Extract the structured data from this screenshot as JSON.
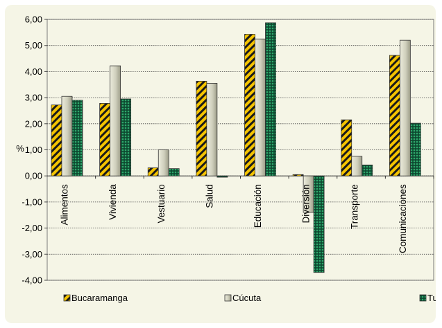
{
  "chart_data": {
    "type": "bar",
    "title": "",
    "xlabel": "",
    "ylabel": "%",
    "ylim": [
      -4,
      6
    ],
    "ytick_step": 1,
    "yticks": [
      "6,00",
      "5,00",
      "4,00",
      "3,00",
      "2,00",
      "1,00",
      "0,00",
      "-1,00",
      "-2,00",
      "-3,00",
      "-4,00"
    ],
    "grid": true,
    "legend_position": "bottom",
    "categories": [
      "Alimentos",
      "Vivienda",
      "Vestuario",
      "Salud",
      "Educación",
      "Diversión",
      "Transporte",
      "Comunicaciones"
    ],
    "series": [
      {
        "name": "Bucaramanga",
        "values": [
          2.72,
          2.78,
          0.31,
          3.63,
          5.43,
          0.05,
          2.15,
          4.62
        ],
        "color": "#f5c400",
        "pattern": "diagonal-stripes"
      },
      {
        "name": "Cúcuta",
        "values": [
          3.05,
          4.22,
          1.0,
          3.55,
          5.25,
          -1.4,
          0.75,
          5.2
        ],
        "color": "#c8c8b4",
        "pattern": "gradient"
      },
      {
        "name": "Tunja",
        "values": [
          2.9,
          2.95,
          0.28,
          -0.05,
          5.87,
          -3.7,
          0.42,
          2.02
        ],
        "color": "#1e8a5a",
        "pattern": "dots"
      }
    ]
  }
}
